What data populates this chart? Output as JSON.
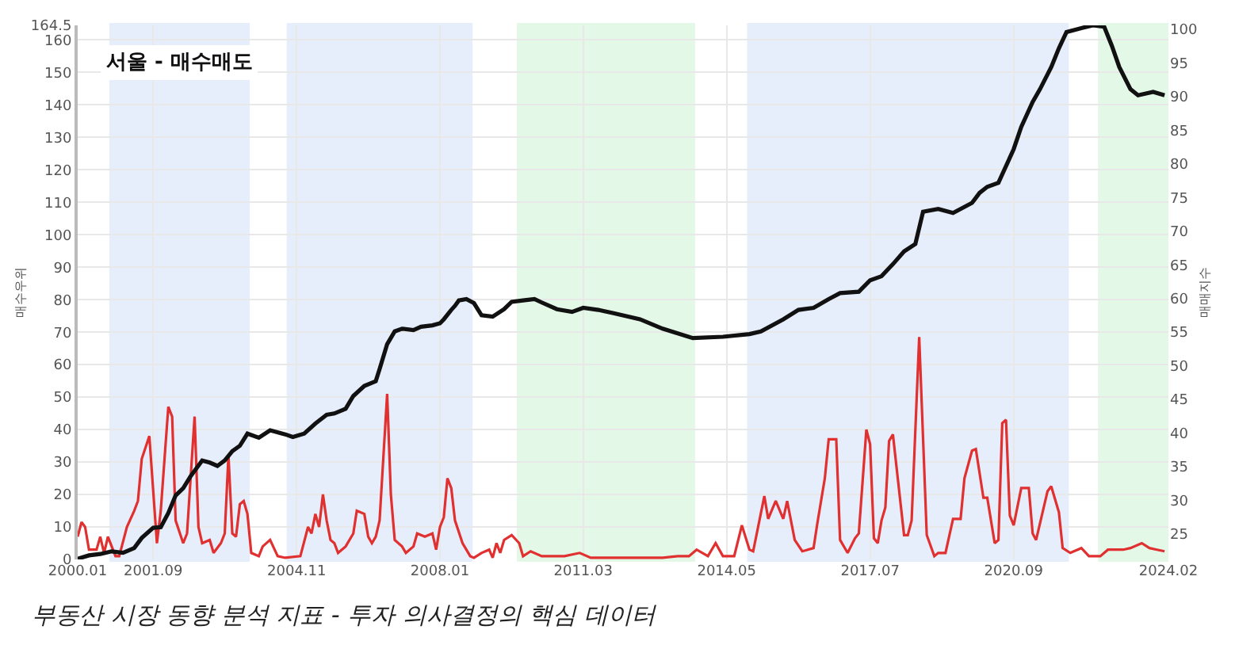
{
  "chart_data": {
    "type": "line",
    "title": "서울 - 매수매도",
    "ylabel": "매수우위",
    "y2label": "매매지수",
    "annotations": [
      "부동산 시장 동향 분석 지표 - 투자 의사결정의 핵심 데이터"
    ],
    "xlim": [
      "2000-01",
      "2024-02"
    ],
    "xticks": [
      {
        "value": "2000-01",
        "label": "2000.01"
      },
      {
        "value": "2001-09",
        "label": "2001.09"
      },
      {
        "value": "2004-11",
        "label": "2004.11"
      },
      {
        "value": "2008-01",
        "label": "2008.01"
      },
      {
        "value": "2011-03",
        "label": "2011.03"
      },
      {
        "value": "2014-05",
        "label": "2014.05"
      },
      {
        "value": "2017-07",
        "label": "2017.07"
      },
      {
        "value": "2020-09",
        "label": "2020.09"
      },
      {
        "value": "2024-02",
        "label": "2024.02"
      }
    ],
    "ylim": [
      0,
      164.5
    ],
    "yticks": [
      0,
      10,
      20,
      30,
      40,
      50,
      60,
      70,
      80,
      90,
      100,
      110,
      120,
      130,
      140,
      150,
      160,
      164.5
    ],
    "y2lim": [
      21.2,
      100.6
    ],
    "y2ticks": [
      25,
      30,
      35,
      40,
      45,
      50,
      55,
      60,
      65,
      70,
      75,
      80,
      85,
      90,
      95,
      100
    ],
    "grid": true,
    "marker": "none",
    "line_style": "solid",
    "bands": [
      {
        "axis": "x",
        "from": "2000-10",
        "to": "2003-10",
        "color": "#3a7be8"
      },
      {
        "axis": "x",
        "from": "2004-09",
        "to": "2008-09",
        "color": "#3a7be8"
      },
      {
        "axis": "x",
        "from": "2009-10",
        "to": "2013-08",
        "color": "#22cc44"
      },
      {
        "axis": "x",
        "from": "2014-11",
        "to": "2021-11",
        "color": "#3a7be8"
      },
      {
        "axis": "x",
        "from": "2022-08",
        "to": "2024-02",
        "color": "#22cc44"
      }
    ],
    "series": [
      {
        "color": "#e03030",
        "x": [
          "2000-01",
          "2000-02",
          "2000-03",
          "2000-04",
          "2000-06",
          "2000-07",
          "2000-08",
          "2000-09",
          "2000-11",
          "2000-12",
          "2001-02",
          "2001-04",
          "2001-05",
          "2001-06",
          "2001-08",
          "2001-10",
          "2001-11",
          "2002-01",
          "2002-02",
          "2002-03",
          "2002-05",
          "2002-06",
          "2002-08",
          "2002-09",
          "2002-10",
          "2002-12",
          "2003-01",
          "2003-03",
          "2003-04",
          "2003-05",
          "2003-06",
          "2003-07",
          "2003-08",
          "2003-09",
          "2003-10",
          "2003-11",
          "2004-01",
          "2004-02",
          "2004-04",
          "2004-06",
          "2004-08",
          "2004-12",
          "2005-02",
          "2005-03",
          "2005-04",
          "2005-05",
          "2005-06",
          "2005-07",
          "2005-08",
          "2005-09",
          "2005-10",
          "2005-12",
          "2006-02",
          "2006-03",
          "2006-05",
          "2006-06",
          "2006-07",
          "2006-08",
          "2006-09",
          "2006-11",
          "2006-12",
          "2007-01",
          "2007-03",
          "2007-04",
          "2007-06",
          "2007-07",
          "2007-09",
          "2007-11",
          "2007-12",
          "2008-01",
          "2008-02",
          "2008-03",
          "2008-04",
          "2008-05",
          "2008-07",
          "2008-09",
          "2008-10",
          "2008-12",
          "2009-02",
          "2009-03",
          "2009-04",
          "2009-05",
          "2009-06",
          "2009-08",
          "2009-10",
          "2009-11",
          "2010-01",
          "2010-04",
          "2010-10",
          "2011-02",
          "2011-05",
          "2011-10",
          "2012-12",
          "2013-04",
          "2013-07",
          "2013-09",
          "2013-12",
          "2014-02",
          "2014-04",
          "2014-07",
          "2014-09",
          "2014-11",
          "2014-12",
          "2015-03",
          "2015-04",
          "2015-06",
          "2015-08",
          "2015-09",
          "2015-11",
          "2016-01",
          "2016-04",
          "2016-05",
          "2016-07",
          "2016-08",
          "2016-10",
          "2016-11",
          "2017-01",
          "2017-03",
          "2017-04",
          "2017-06",
          "2017-07",
          "2017-08",
          "2017-09",
          "2017-10",
          "2017-11",
          "2017-12",
          "2018-01",
          "2018-04",
          "2018-05",
          "2018-06",
          "2018-08",
          "2018-10",
          "2018-12",
          "2019-01",
          "2019-03",
          "2019-05",
          "2019-07",
          "2019-08",
          "2019-10",
          "2019-11",
          "2020-01",
          "2020-02",
          "2020-04",
          "2020-05",
          "2020-06",
          "2020-07",
          "2020-08",
          "2020-09",
          "2020-11",
          "2021-01",
          "2021-02",
          "2021-03",
          "2021-06",
          "2021-07",
          "2021-09",
          "2021-10",
          "2021-12",
          "2022-03",
          "2022-05",
          "2022-08",
          "2022-10",
          "2022-12",
          "2023-02",
          "2023-04",
          "2023-07",
          "2023-09",
          "2023-11",
          "2024-01"
        ],
        "values": [
          7,
          11.5,
          10,
          3,
          3,
          7,
          2,
          7,
          1,
          1,
          10,
          15,
          18,
          31,
          38,
          5,
          15,
          47,
          44,
          12,
          5,
          8,
          44,
          10,
          5,
          6,
          2,
          5,
          8,
          32,
          8,
          7,
          17,
          18,
          14,
          2,
          1,
          4,
          6,
          1,
          0.5,
          1,
          10,
          8,
          14,
          10,
          20,
          12,
          6,
          5,
          2,
          4,
          8,
          15,
          14,
          7,
          5,
          7,
          12,
          51,
          20,
          6,
          4,
          2,
          4,
          8,
          7,
          8,
          3,
          10,
          13,
          25,
          22,
          12,
          5,
          1,
          0.5,
          2,
          3,
          0.5,
          5,
          2,
          6,
          7.5,
          5,
          1,
          2.5,
          1,
          1,
          2,
          0.5,
          0.5,
          0.5,
          1,
          1,
          3,
          1,
          5,
          1,
          1,
          10.5,
          3,
          2.5,
          19.5,
          12.5,
          18,
          12.5,
          18,
          6,
          2.5,
          3.5,
          11,
          25,
          37,
          37,
          6,
          2,
          6.5,
          8,
          40,
          35.5,
          6.5,
          5,
          12,
          16,
          36.5,
          38.5,
          7.5,
          7.5,
          12,
          68.5,
          7.5,
          1,
          2,
          2,
          12.5,
          12.5,
          25,
          33.5,
          34,
          19,
          19,
          5,
          6,
          42,
          43,
          13.5,
          10.5,
          22,
          22,
          8,
          6,
          21,
          22.5,
          14.5,
          3.5,
          2,
          3.5,
          1,
          1,
          3,
          3,
          3,
          3.5,
          5,
          3.5,
          3,
          2.5
        ]
      },
      {
        "color": "#111111",
        "axis": "y2",
        "x": [
          "2000-01",
          "2000-04",
          "2000-07",
          "2000-10",
          "2001-01",
          "2001-04",
          "2001-06",
          "2001-09",
          "2001-11",
          "2002-01",
          "2002-03",
          "2002-05",
          "2002-07",
          "2002-10",
          "2002-12",
          "2003-02",
          "2003-04",
          "2003-06",
          "2003-08",
          "2003-10",
          "2004-01",
          "2004-04",
          "2004-08",
          "2004-10",
          "2005-01",
          "2005-04",
          "2005-07",
          "2005-09",
          "2005-12",
          "2006-02",
          "2006-05",
          "2006-08",
          "2006-09",
          "2006-11",
          "2007-01",
          "2007-03",
          "2007-06",
          "2007-08",
          "2007-11",
          "2008-01",
          "2008-02",
          "2008-04",
          "2008-05",
          "2008-06",
          "2008-08",
          "2008-10",
          "2008-12",
          "2009-03",
          "2009-06",
          "2009-08",
          "2009-11",
          "2010-02",
          "2010-04",
          "2010-08",
          "2010-12",
          "2011-03",
          "2011-07",
          "2011-11",
          "2012-06",
          "2012-12",
          "2013-08",
          "2014-04",
          "2014-11",
          "2015-02",
          "2015-08",
          "2015-12",
          "2016-04",
          "2016-08",
          "2016-11",
          "2017-04",
          "2017-07",
          "2017-10",
          "2018-01",
          "2018-04",
          "2018-07",
          "2018-09",
          "2019-01",
          "2019-05",
          "2019-10",
          "2019-12",
          "2020-02",
          "2020-05",
          "2020-09",
          "2020-11",
          "2021-02",
          "2021-04",
          "2021-07",
          "2021-09",
          "2021-11",
          "2022-03",
          "2022-06",
          "2022-09",
          "2022-11",
          "2023-01",
          "2023-04",
          "2023-06",
          "2023-10",
          "2024-01"
        ],
        "values": [
          21.3,
          21.8,
          22,
          22.4,
          22.2,
          22.9,
          24.4,
          25.9,
          26,
          28.1,
          30.7,
          31.8,
          33.6,
          35.9,
          35.6,
          35.1,
          35.9,
          37.3,
          38.1,
          39.9,
          39.3,
          40.4,
          39.8,
          39.4,
          39.9,
          41.4,
          42.7,
          42.9,
          43.6,
          45.5,
          47,
          47.7,
          49.5,
          53.2,
          55.1,
          55.5,
          55.3,
          55.8,
          56,
          56.3,
          56.9,
          58.3,
          58.9,
          59.7,
          59.9,
          59.3,
          57.5,
          57.3,
          58.4,
          59.5,
          59.7,
          59.9,
          59.4,
          58.4,
          58,
          58.6,
          58.3,
          57.8,
          56.9,
          55.5,
          54.1,
          54.3,
          54.7,
          55.1,
          56.9,
          58.3,
          58.6,
          59.9,
          60.8,
          61,
          62.7,
          63.3,
          65.1,
          67,
          68.1,
          72.9,
          73.3,
          72.7,
          74.2,
          75.7,
          76.6,
          77.2,
          82.2,
          85.5,
          89.2,
          91.1,
          94.4,
          97.2,
          99.6,
          100.2,
          100.6,
          100.4,
          97.6,
          94.4,
          91.1,
          90.2,
          90.7,
          90.2
        ]
      }
    ]
  }
}
